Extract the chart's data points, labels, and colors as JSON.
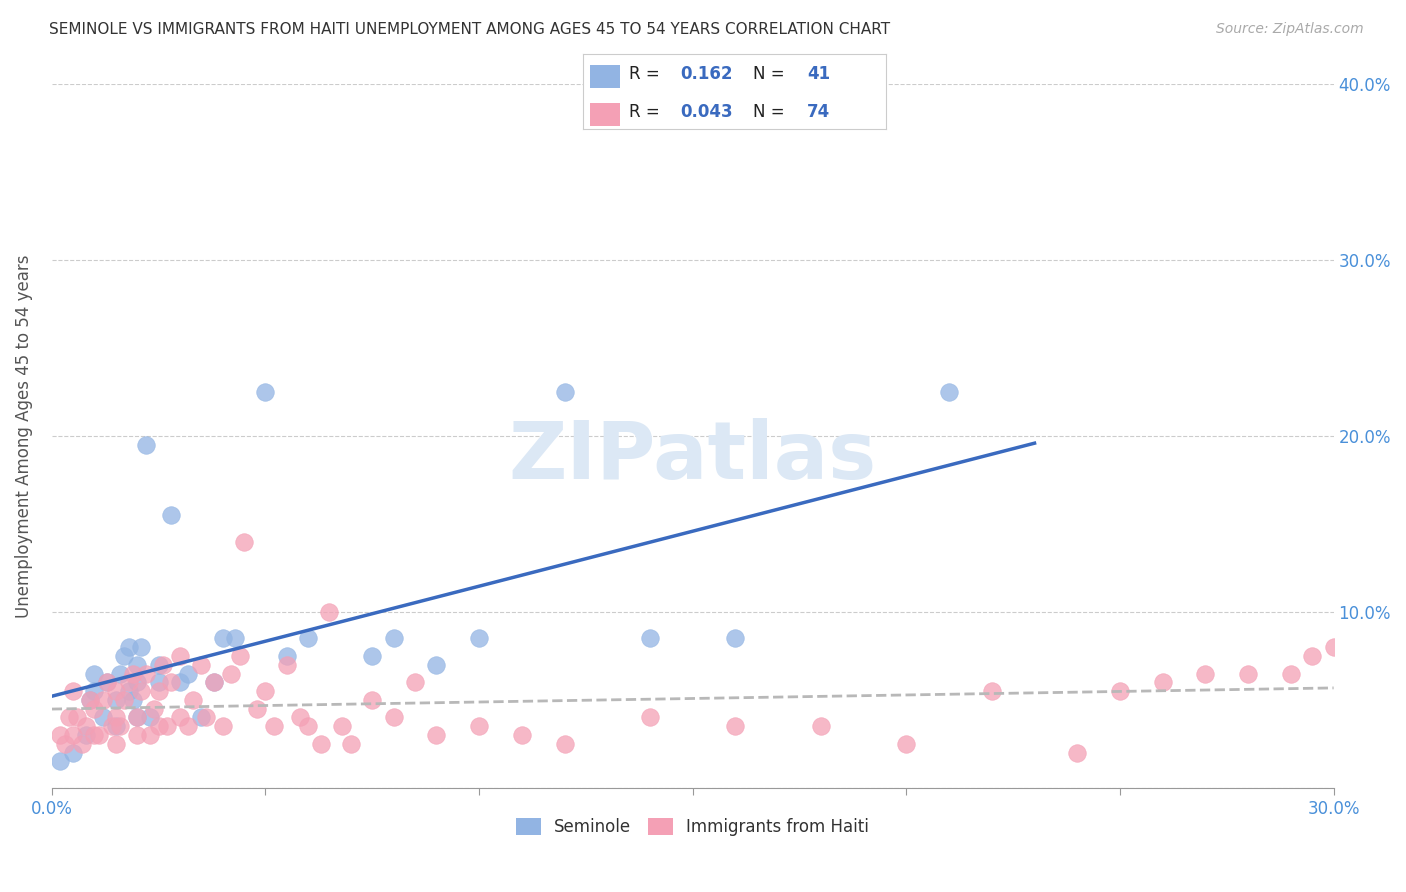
{
  "title": "SEMINOLE VS IMMIGRANTS FROM HAITI UNEMPLOYMENT AMONG AGES 45 TO 54 YEARS CORRELATION CHART",
  "source": "Source: ZipAtlas.com",
  "ylabel": "Unemployment Among Ages 45 to 54 years",
  "xlim": [
    0.0,
    0.3
  ],
  "ylim": [
    -0.02,
    0.42
  ],
  "plot_ylim": [
    0.0,
    0.4
  ],
  "xticks": [
    0.0,
    0.05,
    0.1,
    0.15,
    0.2,
    0.25,
    0.3
  ],
  "yticks_right": [
    0.0,
    0.1,
    0.2,
    0.3,
    0.4
  ],
  "seminole_R": 0.162,
  "seminole_N": 41,
  "haiti_R": 0.043,
  "haiti_N": 74,
  "seminole_color": "#92b4e3",
  "haiti_color": "#f4a0b5",
  "trend_seminole_color": "#3a6abf",
  "trend_haiti_color": "#b8b8b8",
  "legend_text_color": "#3a6abf",
  "label_color": "#222222",
  "background_color": "#ffffff",
  "grid_color": "#cccccc",
  "watermark_color": "#dce8f5",
  "seminole_x": [
    0.002,
    0.005,
    0.008,
    0.009,
    0.01,
    0.01,
    0.012,
    0.013,
    0.015,
    0.015,
    0.016,
    0.017,
    0.018,
    0.018,
    0.019,
    0.02,
    0.02,
    0.02,
    0.021,
    0.022,
    0.023,
    0.025,
    0.025,
    0.028,
    0.03,
    0.032,
    0.035,
    0.038,
    0.04,
    0.043,
    0.05,
    0.055,
    0.06,
    0.075,
    0.08,
    0.09,
    0.1,
    0.12,
    0.14,
    0.16,
    0.21
  ],
  "seminole_y": [
    0.015,
    0.02,
    0.03,
    0.05,
    0.055,
    0.065,
    0.04,
    0.06,
    0.035,
    0.05,
    0.065,
    0.075,
    0.055,
    0.08,
    0.05,
    0.04,
    0.06,
    0.07,
    0.08,
    0.195,
    0.04,
    0.06,
    0.07,
    0.155,
    0.06,
    0.065,
    0.04,
    0.06,
    0.085,
    0.085,
    0.225,
    0.075,
    0.085,
    0.075,
    0.085,
    0.07,
    0.085,
    0.225,
    0.085,
    0.085,
    0.225
  ],
  "haiti_x": [
    0.002,
    0.003,
    0.004,
    0.005,
    0.005,
    0.006,
    0.007,
    0.008,
    0.009,
    0.01,
    0.01,
    0.011,
    0.012,
    0.013,
    0.014,
    0.015,
    0.015,
    0.015,
    0.016,
    0.017,
    0.018,
    0.019,
    0.02,
    0.02,
    0.021,
    0.022,
    0.023,
    0.024,
    0.025,
    0.025,
    0.026,
    0.027,
    0.028,
    0.03,
    0.03,
    0.032,
    0.033,
    0.035,
    0.036,
    0.038,
    0.04,
    0.042,
    0.044,
    0.045,
    0.048,
    0.05,
    0.052,
    0.055,
    0.058,
    0.06,
    0.063,
    0.065,
    0.068,
    0.07,
    0.075,
    0.08,
    0.085,
    0.09,
    0.1,
    0.11,
    0.12,
    0.14,
    0.16,
    0.18,
    0.2,
    0.22,
    0.24,
    0.25,
    0.26,
    0.27,
    0.28,
    0.29,
    0.295,
    0.3
  ],
  "haiti_y": [
    0.03,
    0.025,
    0.04,
    0.03,
    0.055,
    0.04,
    0.025,
    0.035,
    0.05,
    0.03,
    0.045,
    0.03,
    0.05,
    0.06,
    0.035,
    0.025,
    0.04,
    0.055,
    0.035,
    0.05,
    0.06,
    0.065,
    0.03,
    0.04,
    0.055,
    0.065,
    0.03,
    0.045,
    0.035,
    0.055,
    0.07,
    0.035,
    0.06,
    0.04,
    0.075,
    0.035,
    0.05,
    0.07,
    0.04,
    0.06,
    0.035,
    0.065,
    0.075,
    0.14,
    0.045,
    0.055,
    0.035,
    0.07,
    0.04,
    0.035,
    0.025,
    0.1,
    0.035,
    0.025,
    0.05,
    0.04,
    0.06,
    0.03,
    0.035,
    0.03,
    0.025,
    0.04,
    0.035,
    0.035,
    0.025,
    0.055,
    0.02,
    0.055,
    0.06,
    0.065,
    0.065,
    0.065,
    0.075,
    0.08
  ]
}
